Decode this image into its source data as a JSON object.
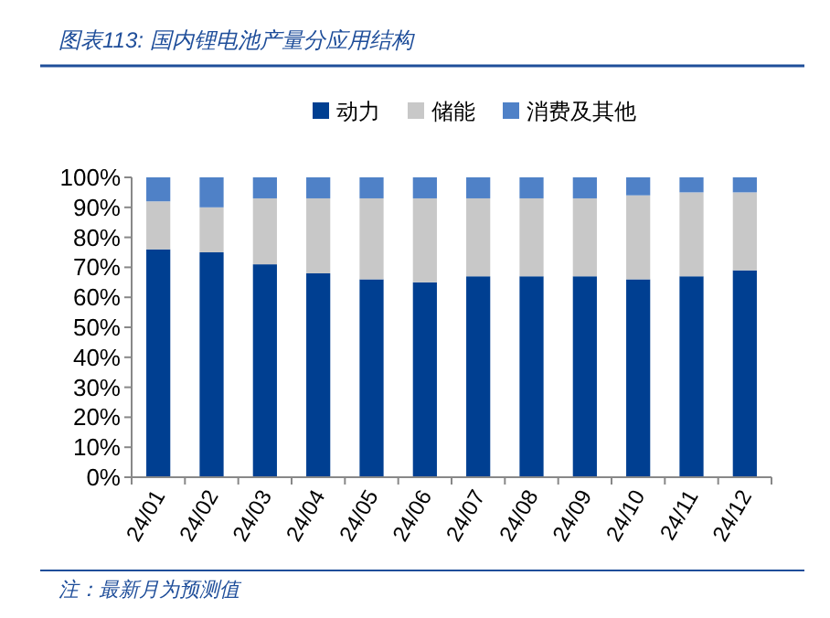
{
  "chart_data": {
    "type": "bar",
    "stacked": true,
    "title": "图表113: 国内锂电池产量分应用结构",
    "annotations": [
      "注：最新月为预测值"
    ],
    "categories": [
      "24/01",
      "24/02",
      "24/03",
      "24/04",
      "24/05",
      "24/06",
      "24/07",
      "24/08",
      "24/09",
      "24/10",
      "24/11",
      "24/12"
    ],
    "series": [
      {
        "name": "动力",
        "color": "#003f91",
        "values": [
          76,
          75,
          71,
          68,
          66,
          65,
          67,
          67,
          67,
          66,
          67,
          69
        ]
      },
      {
        "name": "储能",
        "color": "#c8c8c8",
        "values": [
          16,
          15,
          22,
          25,
          27,
          28,
          26,
          26,
          26,
          28,
          28,
          26
        ]
      },
      {
        "name": "消费及其他",
        "color": "#4f81c7",
        "values": [
          8,
          10,
          7,
          7,
          7,
          7,
          7,
          7,
          7,
          6,
          5,
          5
        ]
      }
    ],
    "ylim": [
      0,
      100
    ],
    "yticks": [
      {
        "value": 0,
        "label": "0%"
      },
      {
        "value": 10,
        "label": "10%"
      },
      {
        "value": 20,
        "label": "20%"
      },
      {
        "value": 30,
        "label": "30%"
      },
      {
        "value": 40,
        "label": "40%"
      },
      {
        "value": 50,
        "label": "50%"
      },
      {
        "value": 60,
        "label": "60%"
      },
      {
        "value": 70,
        "label": "70%"
      },
      {
        "value": 80,
        "label": "80%"
      },
      {
        "value": 90,
        "label": "90%"
      },
      {
        "value": 100,
        "label": "100%"
      }
    ],
    "grid": false,
    "legend": "top"
  }
}
